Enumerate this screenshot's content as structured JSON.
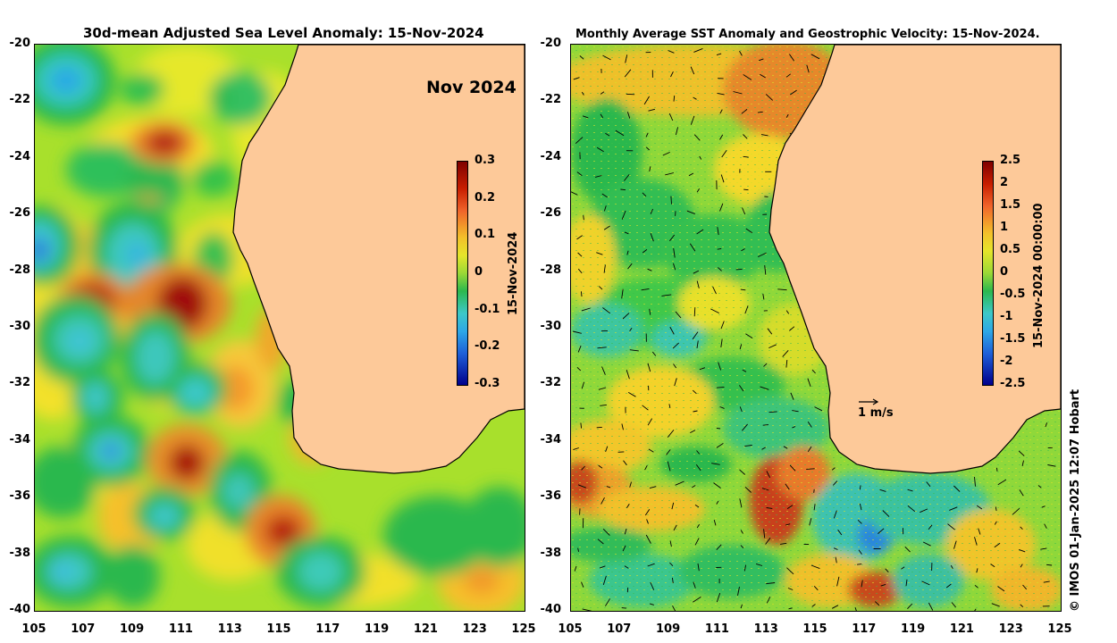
{
  "left_panel": {
    "title": "30d-mean Adjusted Sea Level Anomaly: 15-Nov-2024",
    "month_label": "Nov 2024",
    "colorbar_label": "15-Nov-2024",
    "colorbar_ticks": [
      "0.3",
      "0.2",
      "0.1",
      "0",
      "-0.1",
      "-0.2",
      "-0.3"
    ]
  },
  "right_panel": {
    "title": "Monthly Average SST Anomaly  and Geostrophic Velocity: 15-Nov-2024.",
    "colorbar_label": "15-Nov-2024 00:00:00",
    "colorbar_ticks": [
      "2.5",
      "2",
      "1.5",
      "1",
      "0.5",
      "0",
      "-0.5",
      "-1",
      "-1.5",
      "-2",
      "-2.5"
    ],
    "scale_label": "1 m/s"
  },
  "axes": {
    "lat_ticks": [
      "-20",
      "-22",
      "-24",
      "-26",
      "-28",
      "-30",
      "-32",
      "-34",
      "-36",
      "-38",
      "-40"
    ],
    "lon_ticks": [
      "105",
      "107",
      "109",
      "111",
      "113",
      "115",
      "117",
      "119",
      "121",
      "123",
      "125"
    ]
  },
  "credit": "© IMOS 01-Jan-2025 12:07 Hobart",
  "colors": {
    "land": "#fdc999",
    "ocean_base_left": "#a7e02e",
    "ocean_base_right": "#8fd83a"
  }
}
